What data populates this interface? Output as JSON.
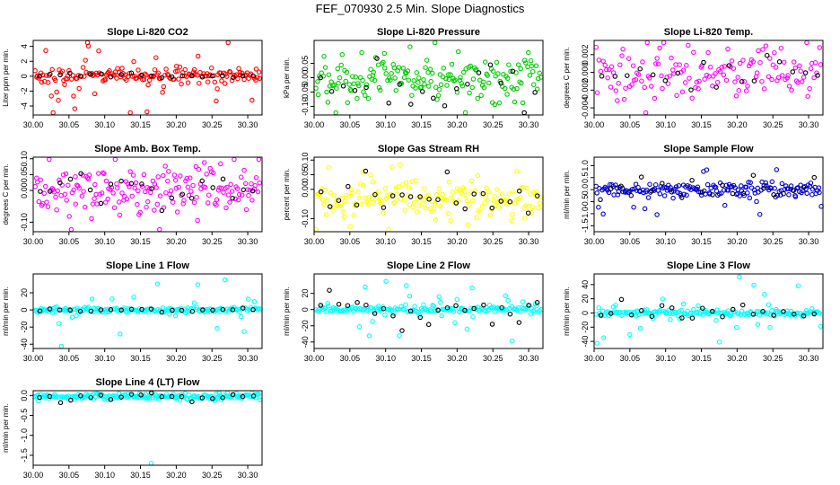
{
  "figure_title": "FEF_070930  2.5 Min. Slope Diagnostics",
  "colors": {
    "highlight": "#000000",
    "axis": "#000000"
  },
  "chart_data": [
    {
      "type": "scatter",
      "title": "Slope Li-820 CO2",
      "ylabel": "Liter ppm per min.",
      "color": "#ff0000",
      "xlim": [
        30.0,
        30.32
      ],
      "ylim": [
        -5.2,
        4.8
      ],
      "xticks": [
        30.0,
        30.05,
        30.1,
        30.15,
        30.2,
        30.25,
        30.3
      ],
      "xtick_labels": [
        "30.00",
        "30.05",
        "30.10",
        "30.15",
        "30.20",
        "30.25",
        "30.30"
      ],
      "yticks": [
        -4,
        -2,
        0,
        2,
        4
      ],
      "ytick_labels": [
        "-4",
        "-2",
        "0",
        "2",
        "4"
      ],
      "gen": {
        "n": 200,
        "center": 0.1,
        "spread": 0.5,
        "outlier_rate": 0.18,
        "outlier_spread": 3.0,
        "highlight_every": 9,
        "highlight_spread": 0.15,
        "seed": 11
      }
    },
    {
      "type": "scatter",
      "title": "Slope Li-820 Pressure",
      "ylabel": "kPa per min.",
      "color": "#00cc00",
      "xlim": [
        30.0,
        30.32
      ],
      "ylim": [
        -0.13,
        0.13
      ],
      "xticks": [
        30.0,
        30.05,
        30.1,
        30.15,
        30.2,
        30.25,
        30.3
      ],
      "xtick_labels": [
        "30.00",
        "30.05",
        "30.10",
        "30.15",
        "30.20",
        "30.25",
        "30.30"
      ],
      "yticks": [
        -0.1,
        -0.05,
        0.0,
        0.05
      ],
      "ytick_labels": [
        "-0.10",
        "-0.05",
        "0.00",
        "0.05"
      ],
      "gen": {
        "n": 200,
        "center": 0.0,
        "spread": 0.035,
        "outlier_rate": 0.12,
        "outlier_spread": 0.08,
        "highlight_every": 10,
        "highlight_spread": 0.05,
        "seed": 23
      }
    },
    {
      "type": "scatter",
      "title": "Slope Li-820 Temp.",
      "ylabel": "degrees C per min.",
      "color": "#ff00ff",
      "xlim": [
        30.0,
        30.32
      ],
      "ylim": [
        -0.0048,
        0.0036
      ],
      "xticks": [
        30.0,
        30.05,
        30.1,
        30.15,
        30.2,
        30.25,
        30.3
      ],
      "xtick_labels": [
        "30.00",
        "30.05",
        "30.10",
        "30.15",
        "30.20",
        "30.25",
        "30.30"
      ],
      "yticks": [
        -0.004,
        -0.002,
        0.0,
        0.002
      ],
      "ytick_labels": [
        "-0.004",
        "-0.002",
        "0.000",
        "0.002"
      ],
      "gen": {
        "n": 160,
        "center": 0.0,
        "spread": 0.0015,
        "outlier_rate": 0.1,
        "outlier_spread": 0.0028,
        "highlight_every": 9,
        "highlight_spread": 0.0009,
        "seed": 37
      }
    },
    {
      "type": "scatter",
      "title": "Slope Amb. Box Temp.",
      "ylabel": "degrees C per min.",
      "color": "#ff00ff",
      "xlim": [
        30.0,
        30.32
      ],
      "ylim": [
        -0.13,
        0.105
      ],
      "xticks": [
        30.0,
        30.05,
        30.1,
        30.15,
        30.2,
        30.25,
        30.3
      ],
      "xtick_labels": [
        "30.00",
        "30.05",
        "30.10",
        "30.15",
        "30.20",
        "30.25",
        "30.30"
      ],
      "yticks": [
        -0.1,
        0.0,
        0.05,
        0.1
      ],
      "ytick_labels": [
        "-0.10",
        "0.00",
        "0.05",
        "0.10"
      ],
      "gen": {
        "n": 200,
        "center": 0.005,
        "spread": 0.04,
        "outlier_rate": 0.1,
        "outlier_spread": 0.07,
        "highlight_every": 9,
        "highlight_spread": 0.03,
        "seed": 41
      }
    },
    {
      "type": "scatter",
      "title": "Slope Gas Stream RH",
      "ylabel": "percent per min.",
      "color": "#ffff00",
      "xlim": [
        30.0,
        30.32
      ],
      "ylim": [
        -0.145,
        0.11
      ],
      "xticks": [
        30.0,
        30.05,
        30.1,
        30.15,
        30.2,
        30.25,
        30.3
      ],
      "xtick_labels": [
        "30.00",
        "30.05",
        "30.10",
        "30.15",
        "30.20",
        "30.25",
        "30.30"
      ],
      "yticks": [
        -0.1,
        0.0,
        0.05,
        0.1
      ],
      "ytick_labels": [
        "-0.10",
        "0.00",
        "0.05",
        "0.10"
      ],
      "gen": {
        "n": 200,
        "center": -0.035,
        "spread": 0.03,
        "outlier_rate": 0.12,
        "outlier_spread": 0.08,
        "highlight_every": 8,
        "highlight_spread": 0.05,
        "seed": 53
      }
    },
    {
      "type": "scatter",
      "title": "Slope Sample Flow",
      "ylabel": "ml/min per min.",
      "color": "#0000cc",
      "xlim": [
        30.0,
        30.32
      ],
      "ylim": [
        -1.75,
        1.35
      ],
      "xticks": [
        30.0,
        30.05,
        30.1,
        30.15,
        30.2,
        30.25,
        30.3
      ],
      "xtick_labels": [
        "30.00",
        "30.05",
        "30.10",
        "30.15",
        "30.20",
        "30.25",
        "30.30"
      ],
      "yticks": [
        -1.5,
        -1.0,
        -0.5,
        0.0,
        0.5,
        1.0
      ],
      "ytick_labels": [
        "-1.5",
        "-1.0",
        "-0.5",
        "0.0",
        "0.5",
        "1.0"
      ],
      "gen": {
        "n": 200,
        "center": 0.0,
        "spread": 0.15,
        "outlier_rate": 0.2,
        "outlier_spread": 0.6,
        "highlight_every": 9,
        "highlight_spread": 0.3,
        "seed": 61
      }
    },
    {
      "type": "scatter",
      "title": "Slope Line 1 Flow",
      "ylabel": "ml/min per min.",
      "color": "#00ffff",
      "xlim": [
        30.0,
        30.32
      ],
      "ylim": [
        -45,
        42
      ],
      "xticks": [
        30.0,
        30.05,
        30.1,
        30.15,
        30.2,
        30.25,
        30.3
      ],
      "xtick_labels": [
        "30.00",
        "30.05",
        "30.10",
        "30.15",
        "30.20",
        "30.25",
        "30.30"
      ],
      "yticks": [
        -40,
        -20,
        0,
        20
      ],
      "ytick_labels": [
        "-40",
        "-20",
        "0",
        "20"
      ],
      "gen": {
        "n": 200,
        "center": 0.0,
        "spread": 1.5,
        "outlier_rate": 0.15,
        "outlier_spread": 20,
        "highlight_every": 9,
        "highlight_spread": 1.0,
        "seed": 71
      }
    },
    {
      "type": "scatter",
      "title": "Slope Line 2 Flow",
      "ylabel": "ml/min per min.",
      "color": "#00ffff",
      "xlim": [
        30.0,
        30.32
      ],
      "ylim": [
        -48,
        44
      ],
      "xticks": [
        30.0,
        30.05,
        30.1,
        30.15,
        30.2,
        30.25,
        30.3
      ],
      "xtick_labels": [
        "30.00",
        "30.05",
        "30.10",
        "30.15",
        "30.20",
        "30.25",
        "30.30"
      ],
      "yticks": [
        -40,
        -20,
        0,
        20
      ],
      "ytick_labels": [
        "-40",
        "-20",
        "0",
        "20"
      ],
      "gen": {
        "n": 200,
        "center": 0.0,
        "spread": 2.0,
        "outlier_rate": 0.2,
        "outlier_spread": 20,
        "highlight_every": 8,
        "highlight_spread": 10,
        "seed": 83
      }
    },
    {
      "type": "scatter",
      "title": "Slope Line 3 Flow",
      "ylabel": "ml/min per min.",
      "color": "#00ffff",
      "xlim": [
        30.0,
        30.32
      ],
      "ylim": [
        -50,
        55
      ],
      "xticks": [
        30.0,
        30.05,
        30.1,
        30.15,
        30.2,
        30.25,
        30.3
      ],
      "xtick_labels": [
        "30.00",
        "30.05",
        "30.10",
        "30.15",
        "30.20",
        "30.25",
        "30.30"
      ],
      "yticks": [
        -40,
        -20,
        0,
        20,
        40
      ],
      "ytick_labels": [
        "-40",
        "-20",
        "0",
        "20",
        "40"
      ],
      "gen": {
        "n": 200,
        "center": 0.0,
        "spread": 2.0,
        "outlier_rate": 0.18,
        "outlier_spread": 22,
        "highlight_every": 9,
        "highlight_spread": 8,
        "seed": 97
      }
    },
    {
      "type": "scatter",
      "title": "Slope Line 4 (LT) Flow",
      "ylabel": "ml/min per min.",
      "color": "#00ffff",
      "xlim": [
        30.0,
        30.32
      ],
      "ylim": [
        -1.75,
        0.12
      ],
      "xticks": [
        30.0,
        30.05,
        30.1,
        30.15,
        30.2,
        30.25,
        30.3
      ],
      "xtick_labels": [
        "30.00",
        "30.05",
        "30.10",
        "30.15",
        "30.20",
        "30.25",
        "30.30"
      ],
      "yticks": [
        -1.5,
        -1.0,
        -0.5,
        0.0
      ],
      "ytick_labels": [
        "-1.5",
        "-1.0",
        "-0.5",
        "0.0"
      ],
      "gen": {
        "n": 200,
        "center": -0.02,
        "spread": 0.04,
        "outlier_rate": 0.05,
        "outlier_spread": 0.06,
        "highlight_every": 9,
        "highlight_spread": 0.05,
        "seed": 101
      },
      "extra_points": [
        [
          30.165,
          -1.7
        ]
      ]
    }
  ]
}
